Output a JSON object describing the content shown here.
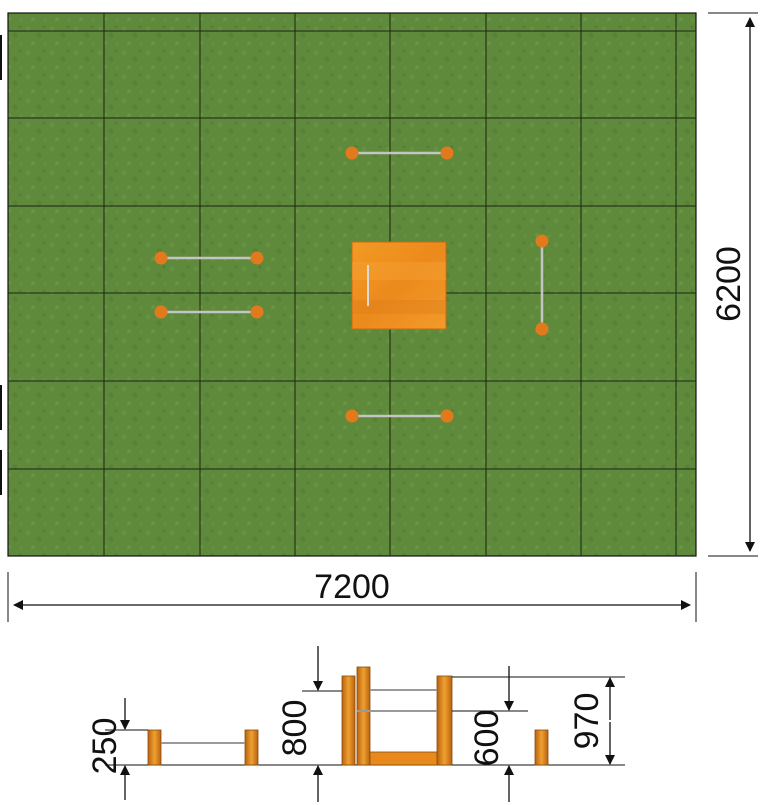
{
  "colors": {
    "turf": "#5f8a3c",
    "turf_dark": "#4d7530",
    "grid_line": "#1c2414",
    "post": "#e07a1c",
    "post_edge": "#a85510",
    "platform": "#f0921e",
    "platform_dark": "#d8781a",
    "bar": "#b8b8b8",
    "ink": "#111111"
  },
  "plan": {
    "width_label": "7200",
    "height_label": "6200"
  },
  "elevation": {
    "dim_250": "250",
    "dim_800": "800",
    "dim_600": "600",
    "dim_970": "970"
  }
}
